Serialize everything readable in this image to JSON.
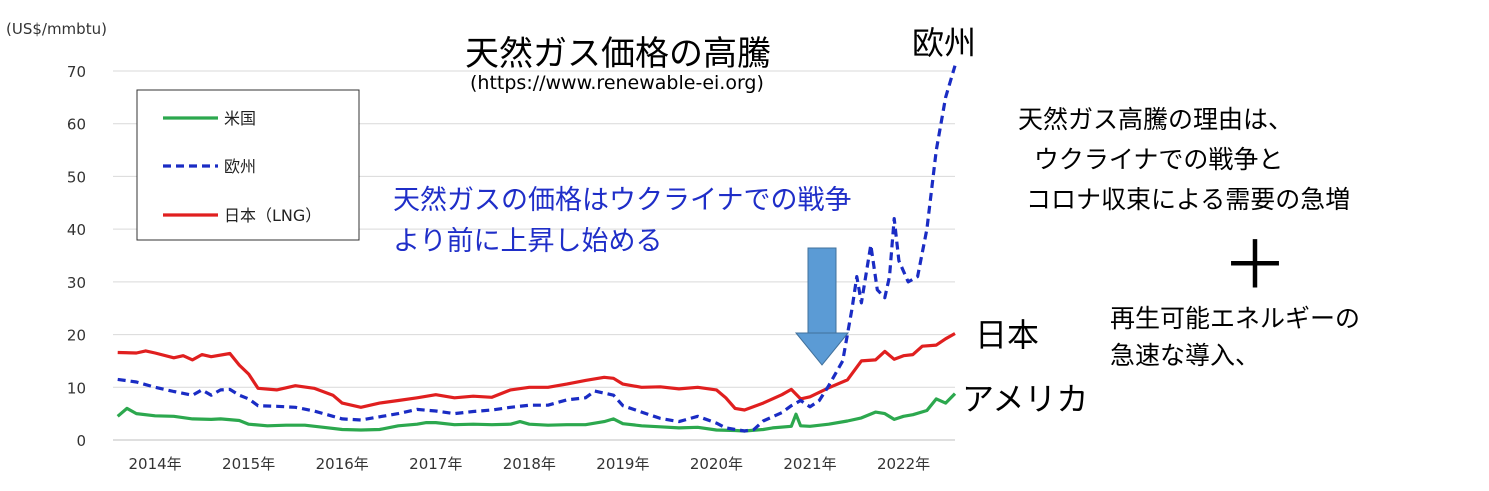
{
  "page": {
    "title": "天然ガス価格の高騰",
    "subtitle": "(https://www.renewable-ei.org)",
    "unit": "(US$/mmbtu)",
    "note_blue": "天然ガスの価格はウクライナでの戦争より前に上昇し始める",
    "label_eu": "欧州",
    "label_jp": "日本",
    "label_us": "アメリカ",
    "reason": "天然ガス高騰の理由は、\n  ウクライナでの戦争と\n コロナ収束による需要の急増",
    "plus": "＋",
    "renewables_line1": "再生可能エネルギーの",
    "renewables_line2": "急速な導入、",
    "arrow_color": "#5b9bd5"
  },
  "chart_data": {
    "type": "line",
    "ylim": [
      0,
      70
    ],
    "yticks": [
      0,
      10,
      20,
      30,
      40,
      50,
      60,
      70
    ],
    "xlim": [
      2013.55,
      2022.55
    ],
    "xticks": [
      {
        "x": 2014.0,
        "label": "2014年"
      },
      {
        "x": 2015.0,
        "label": "2015年"
      },
      {
        "x": 2016.0,
        "label": "2016年"
      },
      {
        "x": 2017.0,
        "label": "2017年"
      },
      {
        "x": 2018.0,
        "label": "2018年"
      },
      {
        "x": 2019.0,
        "label": "2019年"
      },
      {
        "x": 2020.0,
        "label": "2020年"
      },
      {
        "x": 2021.0,
        "label": "2021年"
      },
      {
        "x": 2022.0,
        "label": "2022年"
      }
    ],
    "grid": true,
    "legend": "top-left",
    "series": [
      {
        "name": "米国",
        "color": "#2ca84e",
        "dash": "solid",
        "points": [
          [
            2013.6,
            4.5
          ],
          [
            2013.7,
            6.0
          ],
          [
            2013.8,
            5.0
          ],
          [
            2014.0,
            4.6
          ],
          [
            2014.2,
            4.5
          ],
          [
            2014.4,
            4.0
          ],
          [
            2014.6,
            3.9
          ],
          [
            2014.7,
            4.0
          ],
          [
            2014.9,
            3.7
          ],
          [
            2015.0,
            3.0
          ],
          [
            2015.2,
            2.7
          ],
          [
            2015.4,
            2.8
          ],
          [
            2015.6,
            2.8
          ],
          [
            2015.8,
            2.4
          ],
          [
            2016.0,
            2.0
          ],
          [
            2016.2,
            1.9
          ],
          [
            2016.4,
            2.0
          ],
          [
            2016.6,
            2.7
          ],
          [
            2016.8,
            3.0
          ],
          [
            2016.9,
            3.3
          ],
          [
            2017.0,
            3.3
          ],
          [
            2017.2,
            2.9
          ],
          [
            2017.4,
            3.0
          ],
          [
            2017.6,
            2.9
          ],
          [
            2017.8,
            3.0
          ],
          [
            2017.9,
            3.5
          ],
          [
            2018.0,
            3.0
          ],
          [
            2018.2,
            2.8
          ],
          [
            2018.4,
            2.9
          ],
          [
            2018.6,
            2.9
          ],
          [
            2018.8,
            3.5
          ],
          [
            2018.9,
            4.0
          ],
          [
            2019.0,
            3.1
          ],
          [
            2019.2,
            2.7
          ],
          [
            2019.4,
            2.5
          ],
          [
            2019.6,
            2.3
          ],
          [
            2019.8,
            2.4
          ],
          [
            2020.0,
            1.9
          ],
          [
            2020.2,
            1.8
          ],
          [
            2020.3,
            1.7
          ],
          [
            2020.5,
            2.0
          ],
          [
            2020.6,
            2.3
          ],
          [
            2020.8,
            2.6
          ],
          [
            2020.85,
            4.9
          ],
          [
            2020.9,
            2.7
          ],
          [
            2021.0,
            2.6
          ],
          [
            2021.2,
            3.0
          ],
          [
            2021.4,
            3.6
          ],
          [
            2021.55,
            4.2
          ],
          [
            2021.7,
            5.3
          ],
          [
            2021.8,
            5.0
          ],
          [
            2021.9,
            3.9
          ],
          [
            2022.0,
            4.5
          ],
          [
            2022.1,
            4.8
          ],
          [
            2022.25,
            5.6
          ],
          [
            2022.35,
            7.8
          ],
          [
            2022.45,
            7.0
          ],
          [
            2022.55,
            8.8
          ]
        ]
      },
      {
        "name": "欧州",
        "color": "#1a2cc4",
        "dash": "dashed",
        "points": [
          [
            2013.6,
            11.5
          ],
          [
            2013.8,
            11.0
          ],
          [
            2014.0,
            10.0
          ],
          [
            2014.2,
            9.2
          ],
          [
            2014.4,
            8.5
          ],
          [
            2014.5,
            9.5
          ],
          [
            2014.6,
            8.5
          ],
          [
            2014.7,
            9.5
          ],
          [
            2014.8,
            9.6
          ],
          [
            2014.9,
            8.5
          ],
          [
            2015.0,
            7.8
          ],
          [
            2015.1,
            6.5
          ],
          [
            2015.3,
            6.4
          ],
          [
            2015.5,
            6.2
          ],
          [
            2015.7,
            5.5
          ],
          [
            2015.9,
            4.5
          ],
          [
            2016.0,
            4.0
          ],
          [
            2016.2,
            3.8
          ],
          [
            2016.4,
            4.4
          ],
          [
            2016.6,
            5.0
          ],
          [
            2016.8,
            5.8
          ],
          [
            2017.0,
            5.5
          ],
          [
            2017.2,
            5.0
          ],
          [
            2017.4,
            5.4
          ],
          [
            2017.6,
            5.7
          ],
          [
            2017.8,
            6.2
          ],
          [
            2018.0,
            6.6
          ],
          [
            2018.2,
            6.6
          ],
          [
            2018.4,
            7.6
          ],
          [
            2018.6,
            8.0
          ],
          [
            2018.7,
            9.3
          ],
          [
            2018.9,
            8.5
          ],
          [
            2019.0,
            6.5
          ],
          [
            2019.2,
            5.3
          ],
          [
            2019.4,
            4.1
          ],
          [
            2019.6,
            3.5
          ],
          [
            2019.8,
            4.5
          ],
          [
            2020.0,
            3.2
          ],
          [
            2020.1,
            2.3
          ],
          [
            2020.3,
            1.7
          ],
          [
            2020.4,
            2.0
          ],
          [
            2020.5,
            3.6
          ],
          [
            2020.7,
            5.2
          ],
          [
            2020.8,
            6.5
          ],
          [
            2020.9,
            7.5
          ],
          [
            2021.0,
            6.3
          ],
          [
            2021.1,
            7.5
          ],
          [
            2021.2,
            10.3
          ],
          [
            2021.35,
            15.0
          ],
          [
            2021.45,
            25.0
          ],
          [
            2021.5,
            31.0
          ],
          [
            2021.55,
            26.0
          ],
          [
            2021.65,
            37.0
          ],
          [
            2021.72,
            28.5
          ],
          [
            2021.8,
            27.0
          ],
          [
            2021.85,
            31.0
          ],
          [
            2021.9,
            42.0
          ],
          [
            2021.95,
            34.0
          ],
          [
            2022.05,
            30.0
          ],
          [
            2022.15,
            31.0
          ],
          [
            2022.25,
            40.0
          ],
          [
            2022.35,
            55.0
          ],
          [
            2022.45,
            65.0
          ],
          [
            2022.55,
            71.0
          ]
        ]
      },
      {
        "name": "日本（LNG）",
        "color": "#e01f1f",
        "dash": "solid",
        "points": [
          [
            2013.6,
            16.6
          ],
          [
            2013.8,
            16.5
          ],
          [
            2013.9,
            16.9
          ],
          [
            2014.0,
            16.5
          ],
          [
            2014.2,
            15.6
          ],
          [
            2014.3,
            16.0
          ],
          [
            2014.4,
            15.2
          ],
          [
            2014.5,
            16.2
          ],
          [
            2014.6,
            15.8
          ],
          [
            2014.8,
            16.4
          ],
          [
            2014.9,
            14.2
          ],
          [
            2015.0,
            12.5
          ],
          [
            2015.1,
            9.8
          ],
          [
            2015.3,
            9.5
          ],
          [
            2015.5,
            10.3
          ],
          [
            2015.7,
            9.8
          ],
          [
            2015.9,
            8.5
          ],
          [
            2016.0,
            7.0
          ],
          [
            2016.2,
            6.2
          ],
          [
            2016.4,
            7.0
          ],
          [
            2016.6,
            7.5
          ],
          [
            2016.8,
            8.0
          ],
          [
            2017.0,
            8.6
          ],
          [
            2017.2,
            8.0
          ],
          [
            2017.4,
            8.3
          ],
          [
            2017.6,
            8.1
          ],
          [
            2017.8,
            9.5
          ],
          [
            2018.0,
            10.0
          ],
          [
            2018.2,
            10.0
          ],
          [
            2018.4,
            10.6
          ],
          [
            2018.6,
            11.3
          ],
          [
            2018.8,
            11.9
          ],
          [
            2018.9,
            11.7
          ],
          [
            2019.0,
            10.6
          ],
          [
            2019.2,
            10.0
          ],
          [
            2019.4,
            10.1
          ],
          [
            2019.6,
            9.7
          ],
          [
            2019.8,
            10.0
          ],
          [
            2020.0,
            9.5
          ],
          [
            2020.1,
            8.0
          ],
          [
            2020.2,
            6.0
          ],
          [
            2020.3,
            5.7
          ],
          [
            2020.5,
            7.0
          ],
          [
            2020.7,
            8.6
          ],
          [
            2020.8,
            9.6
          ],
          [
            2020.9,
            7.8
          ],
          [
            2021.0,
            8.2
          ],
          [
            2021.2,
            9.9
          ],
          [
            2021.4,
            11.4
          ],
          [
            2021.55,
            15.0
          ],
          [
            2021.7,
            15.2
          ],
          [
            2021.8,
            16.8
          ],
          [
            2021.9,
            15.3
          ],
          [
            2022.0,
            16.0
          ],
          [
            2022.1,
            16.2
          ],
          [
            2022.2,
            17.8
          ],
          [
            2022.35,
            18.0
          ],
          [
            2022.45,
            19.2
          ],
          [
            2022.55,
            20.2
          ]
        ]
      }
    ]
  }
}
